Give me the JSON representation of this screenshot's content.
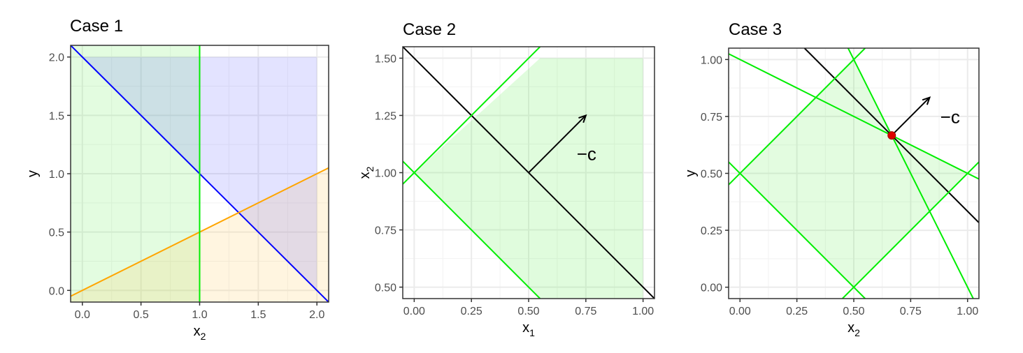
{
  "chart_data": [
    {
      "type": "line",
      "title": "Case 1",
      "xlabel": "x",
      "xlabel_sub": "2",
      "ylabel": "y",
      "ylabel_sub": "",
      "xlim": [
        -0.1,
        2.1
      ],
      "ylim": [
        -0.1,
        2.1
      ],
      "xticks": [
        0,
        0.5,
        1,
        1.5,
        2
      ],
      "xtick_labels": [
        "0.0",
        "0.5",
        "1.0",
        "1.5",
        "2.0"
      ],
      "yticks": [
        0,
        0.5,
        1,
        1.5,
        2
      ],
      "ytick_labels": [
        "0.0",
        "0.5",
        "1.0",
        "1.5",
        "2.0"
      ],
      "grid": true,
      "regions": [
        {
          "points": [
            [
              -0.1,
              -0.1
            ],
            [
              1,
              -0.1
            ],
            [
              1,
              2.1
            ],
            [
              -0.1,
              2.1
            ]
          ],
          "color": "#66ee55",
          "opacity": 0.18
        },
        {
          "points": [
            [
              -0.1,
              -0.05
            ],
            [
              2.1,
              1.05
            ],
            [
              2.1,
              -0.1
            ],
            [
              -0.1,
              -0.1
            ]
          ],
          "color": "#ffcc66",
          "opacity": 0.2
        },
        {
          "points": [
            [
              0,
              2
            ],
            [
              2,
              0
            ],
            [
              2,
              2
            ]
          ],
          "color": "#6666ff",
          "opacity": 0.18
        }
      ],
      "lines": [
        {
          "points": [
            [
              -0.1,
              2.1
            ],
            [
              2.1,
              -0.1
            ]
          ],
          "color": "#0000ff"
        },
        {
          "points": [
            [
              -0.1,
              -0.05
            ],
            [
              2.1,
              1.05
            ]
          ],
          "color": "#ffa500"
        },
        {
          "points": [
            [
              1,
              -0.1
            ],
            [
              1,
              2.1
            ]
          ],
          "color": "#00ee00"
        }
      ],
      "points": [],
      "arrows": [],
      "annotations": []
    },
    {
      "type": "line",
      "title": "Case 2",
      "xlabel": "x",
      "xlabel_sub": "1",
      "ylabel": "x",
      "ylabel_sub": "2",
      "xlim": [
        -0.05,
        1.05
      ],
      "ylim": [
        0.45,
        1.55
      ],
      "xticks": [
        0,
        0.25,
        0.5,
        0.75,
        1
      ],
      "xtick_labels": [
        "0.00",
        "0.25",
        "0.50",
        "0.75",
        "1.00"
      ],
      "yticks": [
        0.5,
        0.75,
        1,
        1.25,
        1.5
      ],
      "ytick_labels": [
        "0.50",
        "0.75",
        "1.00",
        "1.25",
        "1.50"
      ],
      "grid": true,
      "regions": [
        {
          "points": [
            [
              0,
              1
            ],
            [
              0.55,
              0.45
            ],
            [
              1,
              0.45
            ],
            [
              1,
              1.5
            ],
            [
              0.55,
              1.5
            ]
          ],
          "color": "#66ee55",
          "opacity": 0.2
        }
      ],
      "lines": [
        {
          "points": [
            [
              -0.05,
              1.55
            ],
            [
              1.05,
              0.45
            ]
          ],
          "color": "#000000"
        },
        {
          "points": [
            [
              -0.05,
              0.95
            ],
            [
              0.55,
              1.55
            ]
          ],
          "color": "#00ee00"
        },
        {
          "points": [
            [
              -0.05,
              1.05
            ],
            [
              0.55,
              0.45
            ]
          ],
          "color": "#00ee00"
        }
      ],
      "points": [],
      "arrows": [
        {
          "from": [
            0.5,
            1.0
          ],
          "to": [
            0.75,
            1.25
          ],
          "color": "#000000"
        }
      ],
      "annotations": [
        {
          "text": "−c",
          "x": 0.71,
          "y": 1.055
        }
      ]
    },
    {
      "type": "line",
      "title": "Case 3",
      "xlabel": "x",
      "xlabel_sub": "2",
      "ylabel": "y",
      "ylabel_sub": "",
      "xlim": [
        -0.05,
        1.05
      ],
      "ylim": [
        -0.05,
        1.05
      ],
      "xticks": [
        0,
        0.25,
        0.5,
        0.75,
        1
      ],
      "xtick_labels": [
        "0.00",
        "0.25",
        "0.50",
        "0.75",
        "1.00"
      ],
      "yticks": [
        0,
        0.25,
        0.5,
        0.75,
        1
      ],
      "ytick_labels": [
        "0.00",
        "0.25",
        "0.50",
        "0.75",
        "1.00"
      ],
      "grid": true,
      "regions": [
        {
          "points": [
            [
              0,
              0.5
            ],
            [
              0.5,
              0
            ],
            [
              1,
              0.5
            ],
            [
              0.6667,
              0.6667
            ],
            [
              0.5,
              1
            ]
          ],
          "color": "#66ee55",
          "opacity": 0.18
        }
      ],
      "lines": [
        {
          "points": [
            [
              0.2833,
              1.05
            ],
            [
              1.05,
              0.2833
            ]
          ],
          "color": "#000000"
        },
        {
          "points": [
            [
              -0.05,
              1.025
            ],
            [
              1.05,
              0.475
            ]
          ],
          "color": "#00ee00"
        },
        {
          "points": [
            [
              0.475,
              1.05
            ],
            [
              1.025,
              -0.05
            ]
          ],
          "color": "#00ee00"
        },
        {
          "points": [
            [
              -0.05,
              0.45
            ],
            [
              0.55,
              1.05
            ]
          ],
          "color": "#00ee00"
        },
        {
          "points": [
            [
              -0.05,
              0.55
            ],
            [
              0.55,
              -0.05
            ]
          ],
          "color": "#00ee00"
        },
        {
          "points": [
            [
              0.45,
              -0.05
            ],
            [
              1.05,
              0.55
            ]
          ],
          "color": "#00ee00"
        }
      ],
      "points": [
        {
          "x": 0.6667,
          "y": 0.6667,
          "color": "#dd0000"
        }
      ],
      "arrows": [
        {
          "from": [
            0.6667,
            0.6667
          ],
          "to": [
            0.8333,
            0.8333
          ],
          "color": "#000000"
        }
      ],
      "annotations": [
        {
          "text": "−c",
          "x": 0.88,
          "y": 0.72
        }
      ]
    }
  ]
}
